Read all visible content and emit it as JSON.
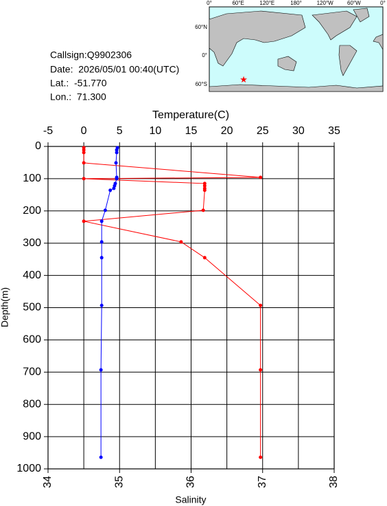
{
  "info": {
    "callsign": "Callsign:Q9902306",
    "date": "Date:  2026/05/01 00:40(UTC)",
    "lat": "Lat.:  -51.770",
    "lon": "Lon.:  71.300"
  },
  "map": {
    "lon_labels": [
      "0°",
      "60°E",
      "120°E",
      "180°",
      "120°W",
      "60°W",
      "0°"
    ],
    "lat_labels": [
      "60°N",
      "0°",
      "60°S"
    ]
  },
  "chart_data": {
    "type": "profile",
    "xlabel": "Temperature(C)",
    "xlim": [
      -5,
      35
    ],
    "xticks": [
      -5,
      0,
      5,
      10,
      15,
      20,
      25,
      30,
      35
    ],
    "x2label": "Salinity",
    "x2lim": [
      34,
      38
    ],
    "x2ticks": [
      34,
      35,
      36,
      37,
      38
    ],
    "ylabel": "Depth(m)",
    "ylim": [
      0,
      1000
    ],
    "yticks": [
      0,
      100,
      200,
      300,
      400,
      500,
      600,
      700,
      800,
      900,
      1000
    ],
    "grid": true,
    "y": [
      4,
      11,
      19,
      51,
      96,
      100,
      115,
      122,
      130,
      136,
      198,
      232,
      296,
      345,
      493,
      693,
      964
    ],
    "series": [
      {
        "color": "#ff0000",
        "axis": "x",
        "values": [
          0,
          0,
          0,
          0,
          24.7,
          0,
          16.9,
          16.9,
          16.9,
          16.9,
          16.7,
          0,
          13.6,
          16.9,
          24.7,
          24.7,
          24.7
        ]
      },
      {
        "color": "#0000ff",
        "axis": "x2",
        "values": [
          34.97,
          34.96,
          34.96,
          34.95,
          34.96,
          34.96,
          34.94,
          34.93,
          34.92,
          34.87,
          34.8,
          34.75,
          34.75,
          34.75,
          34.75,
          34.74,
          34.74
        ]
      }
    ]
  }
}
